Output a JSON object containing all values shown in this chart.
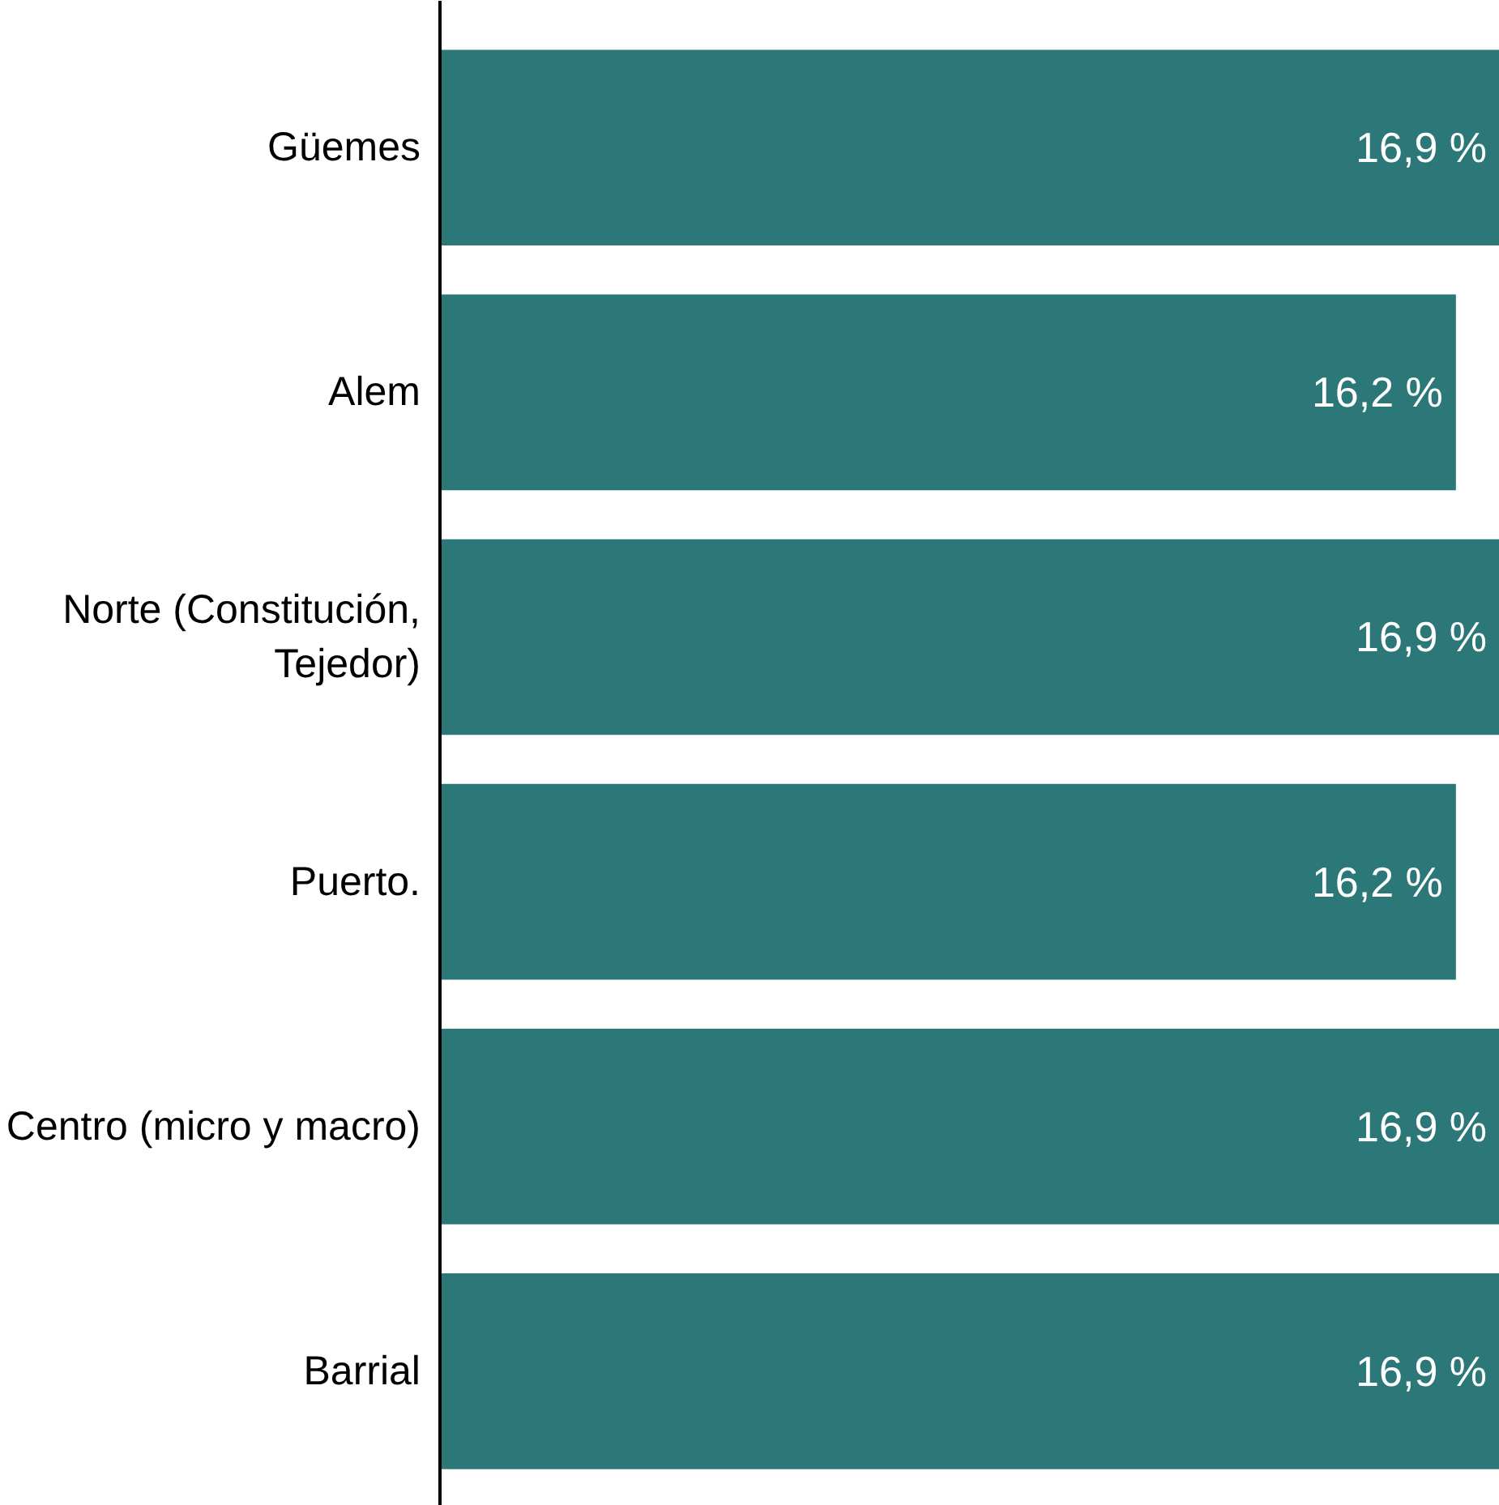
{
  "chart_data": {
    "type": "bar",
    "orientation": "horizontal",
    "categories": [
      "Güemes",
      "Alem",
      "Norte (Constitución, Tejedor)",
      "Puerto.",
      "Centro (micro y macro)",
      "Barrial"
    ],
    "values": [
      16.9,
      16.2,
      16.9,
      16.2,
      16.9,
      16.9
    ],
    "value_labels": [
      "16,9 %",
      "16,2 %",
      "16,9 %",
      "16,2 %",
      "16,9 %",
      "16,9 %"
    ],
    "color": "#2c7878",
    "grid": false,
    "tick_labels": "y"
  }
}
